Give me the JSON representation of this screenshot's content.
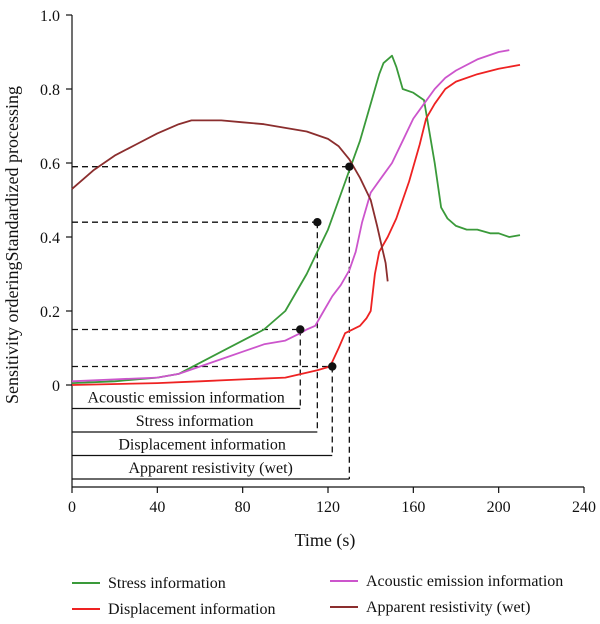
{
  "chart_data": {
    "type": "line",
    "xlabel": "Time (s)",
    "ylabel": "Sensitivity orderingStandardized processing",
    "xlim": [
      0,
      240
    ],
    "ylim": [
      0,
      1.0
    ],
    "xticks": [
      "0",
      "40",
      "80",
      "120",
      "160",
      "200",
      "240"
    ],
    "yticks": [
      "0",
      "0.2",
      "0.4",
      "0.6",
      "0.8",
      "1.0"
    ],
    "grid": false,
    "legend_position": "bottom",
    "series": [
      {
        "name": "Stress information",
        "color": "#3a9a3a",
        "points": [
          [
            0,
            0.005
          ],
          [
            20,
            0.01
          ],
          [
            40,
            0.02
          ],
          [
            50,
            0.03
          ],
          [
            60,
            0.06
          ],
          [
            70,
            0.09
          ],
          [
            80,
            0.12
          ],
          [
            90,
            0.15
          ],
          [
            100,
            0.2
          ],
          [
            105,
            0.25
          ],
          [
            110,
            0.3
          ],
          [
            115,
            0.36
          ],
          [
            120,
            0.42
          ],
          [
            125,
            0.5
          ],
          [
            130,
            0.58
          ],
          [
            135,
            0.66
          ],
          [
            140,
            0.76
          ],
          [
            144,
            0.84
          ],
          [
            146,
            0.87
          ],
          [
            148,
            0.88
          ],
          [
            150,
            0.89
          ],
          [
            152,
            0.86
          ],
          [
            155,
            0.8
          ],
          [
            160,
            0.79
          ],
          [
            165,
            0.77
          ],
          [
            170,
            0.6
          ],
          [
            173,
            0.48
          ],
          [
            176,
            0.45
          ],
          [
            180,
            0.43
          ],
          [
            185,
            0.42
          ],
          [
            190,
            0.42
          ],
          [
            196,
            0.41
          ],
          [
            200,
            0.41
          ],
          [
            205,
            0.4
          ],
          [
            210,
            0.405
          ]
        ]
      },
      {
        "name": "Acoustic emission information",
        "color": "#cc55cc",
        "points": [
          [
            0,
            0.01
          ],
          [
            20,
            0.015
          ],
          [
            40,
            0.02
          ],
          [
            50,
            0.03
          ],
          [
            60,
            0.05
          ],
          [
            70,
            0.07
          ],
          [
            80,
            0.09
          ],
          [
            90,
            0.11
          ],
          [
            100,
            0.12
          ],
          [
            107,
            0.14
          ],
          [
            110,
            0.15
          ],
          [
            114,
            0.16
          ],
          [
            118,
            0.2
          ],
          [
            122,
            0.24
          ],
          [
            126,
            0.27
          ],
          [
            130,
            0.31
          ],
          [
            133,
            0.36
          ],
          [
            136,
            0.44
          ],
          [
            140,
            0.52
          ],
          [
            145,
            0.56
          ],
          [
            150,
            0.6
          ],
          [
            155,
            0.66
          ],
          [
            160,
            0.72
          ],
          [
            165,
            0.76
          ],
          [
            170,
            0.8
          ],
          [
            175,
            0.83
          ],
          [
            180,
            0.85
          ],
          [
            190,
            0.88
          ],
          [
            200,
            0.9
          ],
          [
            205,
            0.905
          ]
        ]
      },
      {
        "name": "Displacement information",
        "color": "#ee2222",
        "points": [
          [
            0,
            0.0
          ],
          [
            40,
            0.005
          ],
          [
            60,
            0.01
          ],
          [
            80,
            0.015
          ],
          [
            100,
            0.02
          ],
          [
            115,
            0.04
          ],
          [
            121,
            0.05
          ],
          [
            125,
            0.1
          ],
          [
            128,
            0.14
          ],
          [
            135,
            0.16
          ],
          [
            138,
            0.18
          ],
          [
            140,
            0.2
          ],
          [
            142,
            0.3
          ],
          [
            144,
            0.36
          ],
          [
            148,
            0.4
          ],
          [
            152,
            0.45
          ],
          [
            158,
            0.55
          ],
          [
            163,
            0.65
          ],
          [
            166,
            0.72
          ],
          [
            170,
            0.76
          ],
          [
            175,
            0.8
          ],
          [
            180,
            0.82
          ],
          [
            190,
            0.84
          ],
          [
            200,
            0.855
          ],
          [
            210,
            0.865
          ]
        ]
      },
      {
        "name": "Apparent resistivity (wet)",
        "color": "#8b2e2e",
        "points": [
          [
            0,
            0.53
          ],
          [
            10,
            0.58
          ],
          [
            20,
            0.62
          ],
          [
            30,
            0.65
          ],
          [
            40,
            0.68
          ],
          [
            50,
            0.705
          ],
          [
            56,
            0.715
          ],
          [
            70,
            0.715
          ],
          [
            80,
            0.71
          ],
          [
            90,
            0.705
          ],
          [
            100,
            0.695
          ],
          [
            110,
            0.685
          ],
          [
            120,
            0.665
          ],
          [
            125,
            0.645
          ],
          [
            130,
            0.61
          ],
          [
            135,
            0.56
          ],
          [
            140,
            0.5
          ],
          [
            143,
            0.43
          ],
          [
            145,
            0.38
          ],
          [
            147,
            0.33
          ],
          [
            148,
            0.28
          ]
        ]
      }
    ],
    "annotations": [
      {
        "label": "Acoustic emission information",
        "x": 107,
        "y": 0.15
      },
      {
        "label": "Stress information",
        "x": 115,
        "y": 0.44
      },
      {
        "label": "Displacement information",
        "x": 122,
        "y": 0.05
      },
      {
        "label": "Apparent resistivity (wet)",
        "x": 130,
        "y": 0.59
      }
    ]
  }
}
